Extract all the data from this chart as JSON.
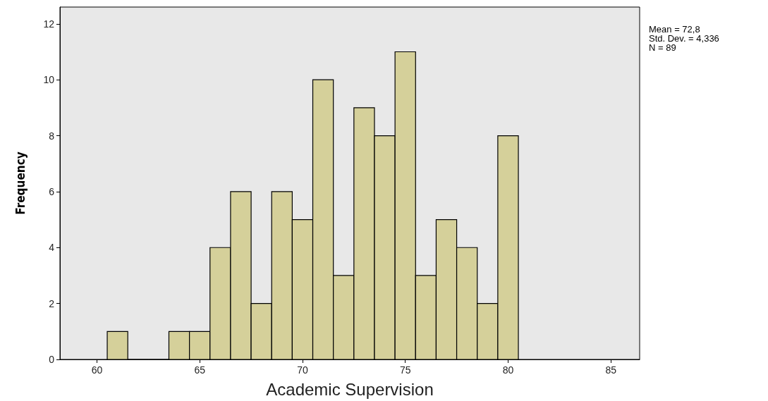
{
  "chart_data": {
    "type": "histogram",
    "xlabel": "Academic Supervision",
    "ylabel": "Frequency",
    "bins": [
      60.5,
      61.5,
      62.5,
      63.5,
      64.5,
      65.5,
      66.5,
      67.5,
      68.5,
      69.5,
      70.5,
      71.5,
      72.5,
      73.5,
      74.5,
      75.5,
      76.5,
      77.5,
      78.5,
      79.5,
      80.5
    ],
    "values": [
      1,
      0,
      0,
      1,
      1,
      4,
      6,
      2,
      6,
      5,
      10,
      3,
      9,
      8,
      11,
      3,
      5,
      4,
      2,
      8
    ],
    "color": "#d5d09a",
    "xlim": [
      58.2,
      86.4
    ],
    "xticks": [
      60,
      65,
      70,
      75,
      80,
      85
    ],
    "ylim": [
      0,
      12.6
    ],
    "yticks": [
      0,
      2,
      4,
      6,
      8,
      10,
      12
    ],
    "grid": false,
    "annotations": [
      "Mean = 72,8",
      "Std. Dev. = 4,336",
      "N = 89"
    ]
  }
}
